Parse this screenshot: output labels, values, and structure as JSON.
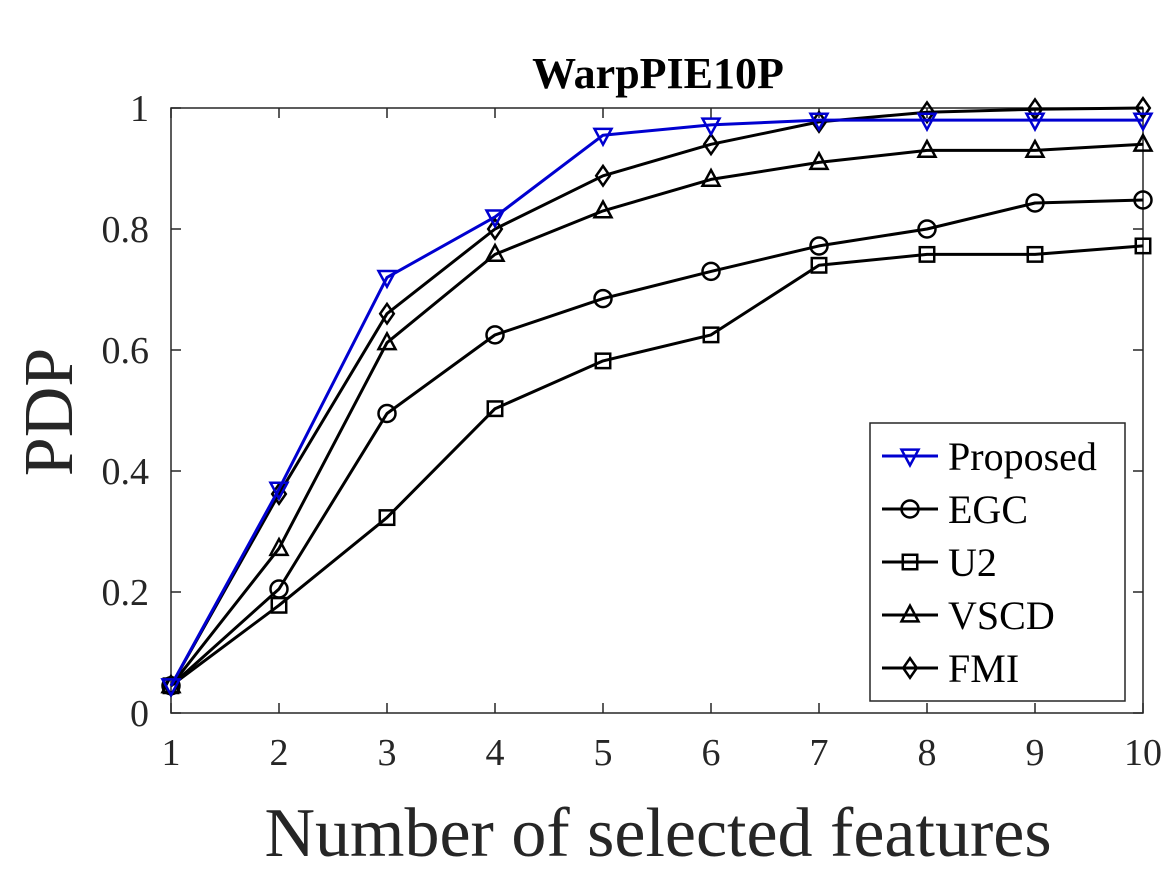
{
  "chart_data": {
    "type": "line",
    "title": "WarpPIE10P",
    "xlabel": "Number of selected features",
    "ylabel": "PDP",
    "x": [
      1,
      2,
      3,
      4,
      5,
      6,
      7,
      8,
      9,
      10
    ],
    "xlim": [
      1,
      10
    ],
    "ylim": [
      0,
      1
    ],
    "xticks": [
      "1",
      "2",
      "3",
      "4",
      "5",
      "6",
      "7",
      "8",
      "9",
      "10"
    ],
    "yticks": [
      "0",
      "0.2",
      "0.4",
      "0.6",
      "0.8",
      "1"
    ],
    "grid": false,
    "legend_position": "bottom-right",
    "series": [
      {
        "name": "Proposed",
        "marker": "triangle-down",
        "color": "#0000d0",
        "values": [
          0.045,
          0.37,
          0.72,
          0.82,
          0.955,
          0.972,
          0.98,
          0.98,
          0.98,
          0.98
        ]
      },
      {
        "name": "EGC",
        "marker": "circle",
        "color": "#000000",
        "values": [
          0.045,
          0.205,
          0.495,
          0.625,
          0.685,
          0.73,
          0.772,
          0.8,
          0.843,
          0.848
        ]
      },
      {
        "name": "U2",
        "marker": "square",
        "color": "#000000",
        "values": [
          0.045,
          0.178,
          0.323,
          0.503,
          0.582,
          0.625,
          0.74,
          0.758,
          0.758,
          0.772
        ]
      },
      {
        "name": "VSCD",
        "marker": "triangle-up",
        "color": "#000000",
        "values": [
          0.045,
          0.272,
          0.612,
          0.758,
          0.83,
          0.882,
          0.91,
          0.93,
          0.93,
          0.94
        ]
      },
      {
        "name": "FMI",
        "marker": "diamond",
        "color": "#000000",
        "values": [
          0.045,
          0.362,
          0.66,
          0.8,
          0.888,
          0.94,
          0.977,
          0.993,
          0.998,
          1.0
        ]
      }
    ]
  }
}
